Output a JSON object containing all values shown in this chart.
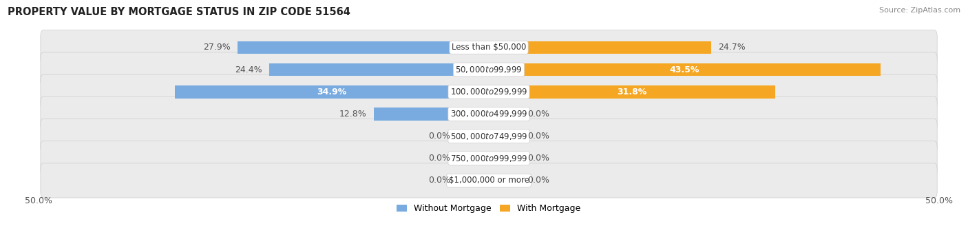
{
  "title": "PROPERTY VALUE BY MORTGAGE STATUS IN ZIP CODE 51564",
  "source": "Source: ZipAtlas.com",
  "categories": [
    "Less than $50,000",
    "$50,000 to $99,999",
    "$100,000 to $299,999",
    "$300,000 to $499,999",
    "$500,000 to $749,999",
    "$750,000 to $999,999",
    "$1,000,000 or more"
  ],
  "without_mortgage": [
    27.9,
    24.4,
    34.9,
    12.8,
    0.0,
    0.0,
    0.0
  ],
  "with_mortgage": [
    24.7,
    43.5,
    31.8,
    0.0,
    0.0,
    0.0,
    0.0
  ],
  "without_color": "#7aabe0",
  "without_color_zero": "#b8cfe8",
  "with_color": "#f5a623",
  "with_color_zero": "#f5d099",
  "row_bg_color": "#ebebeb",
  "row_border_color": "#cccccc",
  "axis_min": -50,
  "axis_max": 50,
  "title_fontsize": 10.5,
  "source_fontsize": 8,
  "value_fontsize": 9,
  "cat_fontsize": 8.5,
  "bar_height": 0.58,
  "zero_stub": 3.5,
  "legend_label_without": "Without Mortgage",
  "legend_label_with": "With Mortgage"
}
